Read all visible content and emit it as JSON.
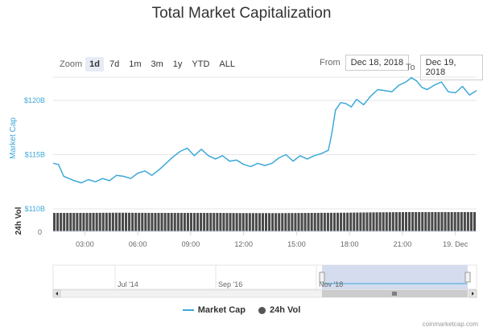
{
  "title": "Total Market Capitalization",
  "zoom": {
    "label": "Zoom",
    "buttons": [
      "1d",
      "7d",
      "1m",
      "3m",
      "1y",
      "YTD",
      "ALL"
    ],
    "active": "1d"
  },
  "range": {
    "from_label": "From",
    "from_value": "Dec 18, 2018",
    "to_label": "To",
    "to_value": "Dec 19, 2018"
  },
  "legend": {
    "market_cap": "Market Cap",
    "vol": "24h Vol"
  },
  "credit": "coinmarketcap.com",
  "colors": {
    "line": "#3da8d8",
    "volume": "#4a4a4a",
    "navigator_fill": "#ccd6eb"
  },
  "chart_data": {
    "type": "line",
    "title": "Total Market Capitalization",
    "ylabel": "Market Cap",
    "ylim": [
      110,
      122
    ],
    "y_ticks": [
      110,
      115,
      120
    ],
    "y_tick_labels": [
      "$110B",
      "$115B",
      "$120B"
    ],
    "x_tick_labels": [
      "03:00",
      "06:00",
      "09:00",
      "12:00",
      "15:00",
      "18:00",
      "21:00",
      "19. Dec"
    ],
    "x_tick_hours": [
      3,
      6,
      9,
      12,
      15,
      18,
      21,
      24
    ],
    "x_range_hours": [
      1.2,
      25.2
    ],
    "series": [
      {
        "name": "Market Cap",
        "unit": "$B",
        "x_hours": [
          1.2,
          1.5,
          1.8,
          2.1,
          2.4,
          2.8,
          3.2,
          3.6,
          4.0,
          4.4,
          4.8,
          5.2,
          5.6,
          6.0,
          6.4,
          6.8,
          7.2,
          7.6,
          8.0,
          8.4,
          8.8,
          9.2,
          9.6,
          10.0,
          10.4,
          10.8,
          11.2,
          11.6,
          12.0,
          12.4,
          12.8,
          13.2,
          13.6,
          14.0,
          14.4,
          14.8,
          15.2,
          15.6,
          16.0,
          16.4,
          16.8,
          17.0,
          17.2,
          17.5,
          17.8,
          18.1,
          18.4,
          18.8,
          19.2,
          19.6,
          20.0,
          20.4,
          20.8,
          21.2,
          21.5,
          21.8,
          22.1,
          22.4,
          22.8,
          23.2,
          23.6,
          24.0,
          24.4,
          24.8,
          25.2
        ],
        "values": [
          114.2,
          114.1,
          113.0,
          112.8,
          112.6,
          112.4,
          112.7,
          112.5,
          112.8,
          112.6,
          113.1,
          113.0,
          112.8,
          113.3,
          113.5,
          113.1,
          113.6,
          114.2,
          114.8,
          115.3,
          115.6,
          114.9,
          115.5,
          114.9,
          114.6,
          114.9,
          114.4,
          114.5,
          114.1,
          113.9,
          114.2,
          114.0,
          114.2,
          114.7,
          115.0,
          114.4,
          114.9,
          114.6,
          114.9,
          115.1,
          115.4,
          117.0,
          119.1,
          119.8,
          119.7,
          119.4,
          120.1,
          119.6,
          120.4,
          121.0,
          120.9,
          120.8,
          121.4,
          121.7,
          122.1,
          121.8,
          121.2,
          121.0,
          121.4,
          121.7,
          120.8,
          120.7,
          121.3,
          120.5,
          120.9
        ]
      },
      {
        "name": "24h Vol",
        "type": "column",
        "x_range_hours": [
          1.2,
          25.2
        ],
        "relative_level": [
          0.92,
          0.92,
          0.93,
          0.92,
          0.92,
          0.92,
          0.91,
          0.91,
          0.92,
          0.93,
          0.95,
          0.96,
          0.96,
          0.96
        ]
      }
    ],
    "lower_pane_label": "24h Vol",
    "lower_pane_tick": "0",
    "navigator": {
      "labels": [
        "Jul '14",
        "Sep '16",
        "Nov '18"
      ]
    },
    "grid": true,
    "legend_position": "bottom-center"
  }
}
